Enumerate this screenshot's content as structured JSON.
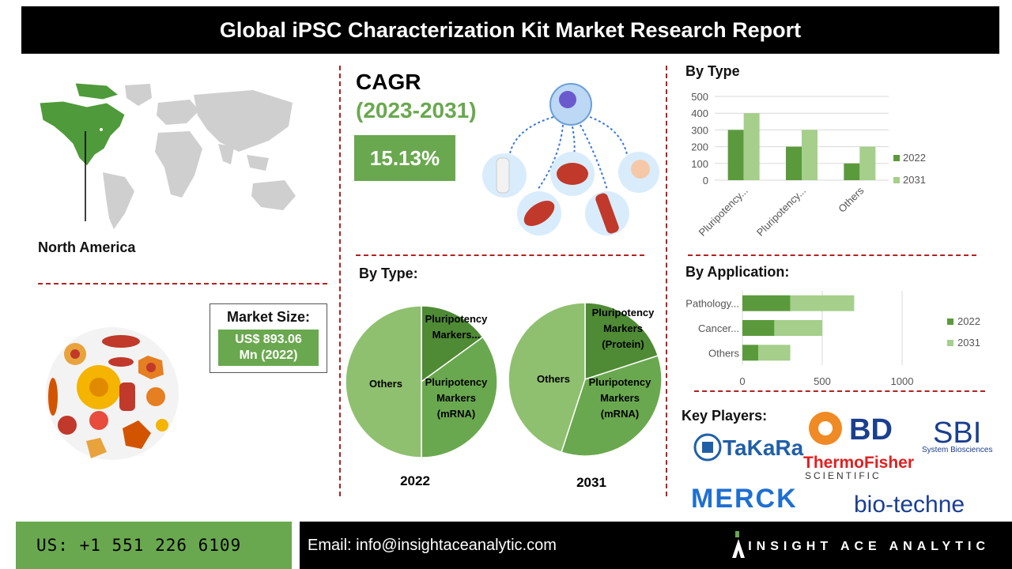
{
  "header": {
    "title": "Global iPSC Characterization Kit Market Research Report"
  },
  "region": {
    "label": "North America"
  },
  "cagr": {
    "title": "CAGR",
    "years": "(2023-2031)",
    "value": "15.13%"
  },
  "market_size": {
    "label": "Market Size:",
    "value_line1": "US$ 893.06",
    "value_line2": "Mn (2022)"
  },
  "sections": {
    "by_type_bar": "By Type",
    "by_type_pie": "By Type:",
    "by_application": "By Application:",
    "key_players": "Key Players:"
  },
  "key_players": {
    "takara": "TaKaRa",
    "bd": "BD",
    "sbi": "SBI",
    "sbi_sub": "System Biosciences",
    "thermo": "ThermoFisher",
    "thermo_sub": "SCIENTIFIC",
    "merck": "MERCK",
    "biotechne": "bio-techne"
  },
  "footer": {
    "phone": "US: +1 551 226 6109",
    "email": "Email: info@insightaceanalytic.com",
    "brand": "INSIGHT ACE ANALYTIC"
  },
  "colors": {
    "dark_green": "#5b9a3c",
    "light_green": "#a5cf8a",
    "mid_green": "#6aa84f",
    "accent_red": "#b22222"
  },
  "chart_data": [
    {
      "type": "bar",
      "title": "By Type",
      "categories": [
        "Pluripotency...",
        "Pluripotency...",
        "Others"
      ],
      "series": [
        {
          "name": "2022",
          "values": [
            300,
            200,
            100
          ]
        },
        {
          "name": "2031",
          "values": [
            400,
            300,
            200
          ]
        }
      ],
      "ylim": [
        0,
        500
      ],
      "yticks": [
        0,
        100,
        200,
        300,
        400,
        500
      ],
      "legend": "right"
    },
    {
      "type": "bar",
      "orientation": "horizontal-stacked",
      "title": "By Application:",
      "categories": [
        "Pathology...",
        "Cancer...",
        "Others"
      ],
      "series": [
        {
          "name": "2022",
          "values": [
            300,
            200,
            100
          ]
        },
        {
          "name": "2031",
          "values": [
            400,
            300,
            200
          ]
        }
      ],
      "xlim": [
        0,
        1000
      ],
      "xticks": [
        0,
        500,
        1000
      ],
      "legend": "right"
    },
    {
      "type": "pie",
      "caption": "2022",
      "slices": [
        {
          "label": "Pluripotency Markers...",
          "value": 15
        },
        {
          "label": "Pluripotency Markers (mRNA)",
          "value": 35
        },
        {
          "label": "Others",
          "value": 50
        }
      ]
    },
    {
      "type": "pie",
      "caption": "2031",
      "slices": [
        {
          "label": "Pluripotency Markers (Protein)",
          "value": 20
        },
        {
          "label": "Pluripotency Markers (mRNA)",
          "value": 35
        },
        {
          "label": "Others",
          "value": 45
        }
      ]
    }
  ]
}
